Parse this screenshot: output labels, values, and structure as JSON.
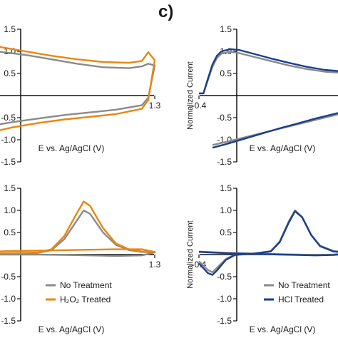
{
  "figure": {
    "panel_label": "c)"
  },
  "colors": {
    "no_treatment": "#8a8a8a",
    "h2o2": "#e8870e",
    "hcl": "#1a3f8c",
    "axis": "#111111"
  },
  "chart_data": [
    {
      "panel": "top-left",
      "type": "line",
      "xlabel": "E vs. Ag/AgCl (V)",
      "ylabel": "",
      "xlim": [
        -0.4,
        1.3
      ],
      "ylim": [
        -1.5,
        1.5
      ],
      "x_ticks_shown": [
        "1.3"
      ],
      "y_ticks": [
        "1.5",
        "1.0",
        "0.5",
        "-0.5",
        "-1.0",
        "-1.5"
      ],
      "series": [
        {
          "name": "",
          "color_key": "no_treatment",
          "points": [
            [
              -0.4,
              0.72
            ],
            [
              -0.2,
              0.92
            ],
            [
              0,
              1.0
            ],
            [
              0.1,
              0.99
            ],
            [
              0.3,
              0.92
            ],
            [
              0.5,
              0.82
            ],
            [
              0.7,
              0.72
            ],
            [
              0.9,
              0.64
            ],
            [
              1.1,
              0.62
            ],
            [
              1.2,
              0.66
            ],
            [
              1.25,
              0.72
            ],
            [
              1.3,
              0.68
            ],
            [
              1.25,
              -0.05
            ],
            [
              1.2,
              -0.22
            ],
            [
              1.0,
              -0.32
            ],
            [
              0.8,
              -0.38
            ],
            [
              0.6,
              -0.44
            ],
            [
              0.4,
              -0.52
            ],
            [
              0.2,
              -0.6
            ],
            [
              0,
              -0.7
            ],
            [
              -0.2,
              -0.82
            ],
            [
              -0.4,
              -0.95
            ]
          ]
        },
        {
          "name": "",
          "color_key": "h2o2",
          "points": [
            [
              -0.4,
              0.85
            ],
            [
              -0.2,
              1.05
            ],
            [
              0,
              1.12
            ],
            [
              0.1,
              1.1
            ],
            [
              0.3,
              1.0
            ],
            [
              0.5,
              0.9
            ],
            [
              0.7,
              0.82
            ],
            [
              0.9,
              0.76
            ],
            [
              1.1,
              0.74
            ],
            [
              1.2,
              0.78
            ],
            [
              1.25,
              0.98
            ],
            [
              1.3,
              0.8
            ],
            [
              1.25,
              -0.1
            ],
            [
              1.2,
              -0.3
            ],
            [
              1.0,
              -0.42
            ],
            [
              0.8,
              -0.48
            ],
            [
              0.6,
              -0.54
            ],
            [
              0.4,
              -0.62
            ],
            [
              0.2,
              -0.72
            ],
            [
              0,
              -0.85
            ],
            [
              -0.2,
              -0.98
            ],
            [
              -0.4,
              -1.1
            ]
          ]
        }
      ]
    },
    {
      "panel": "top-right",
      "type": "line",
      "xlabel": "E vs. Ag/AgCl (V)",
      "ylabel": "Normalized Current",
      "xlim": [
        -0.4,
        1.3
      ],
      "ylim": [
        -1.5,
        1.5
      ],
      "x_ticks_shown": [
        "-0.4"
      ],
      "y_ticks": [
        "1.5",
        "1.0",
        "0.5",
        "-0.5",
        "-1.0",
        "-1.5"
      ],
      "series": [
        {
          "name": "",
          "color_key": "no_treatment",
          "points": [
            [
              -0.4,
              0.05
            ],
            [
              -0.35,
              0.05
            ],
            [
              -0.3,
              0.35
            ],
            [
              -0.25,
              0.65
            ],
            [
              -0.2,
              0.85
            ],
            [
              -0.15,
              0.95
            ],
            [
              -0.05,
              0.99
            ],
            [
              0.05,
              0.96
            ],
            [
              0.2,
              0.88
            ],
            [
              0.4,
              0.78
            ],
            [
              0.6,
              0.68
            ],
            [
              0.8,
              0.6
            ],
            [
              1.0,
              0.54
            ],
            [
              1.3,
              0.5
            ],
            [
              1.3,
              -0.35
            ],
            [
              1.1,
              -0.45
            ],
            [
              0.9,
              -0.55
            ],
            [
              0.7,
              -0.65
            ],
            [
              0.5,
              -0.75
            ],
            [
              0.3,
              -0.85
            ],
            [
              0.1,
              -0.95
            ],
            [
              -0.1,
              -1.05
            ],
            [
              -0.25,
              -1.12
            ]
          ]
        },
        {
          "name": "",
          "color_key": "hcl",
          "points": [
            [
              -0.4,
              0.05
            ],
            [
              -0.35,
              0.05
            ],
            [
              -0.3,
              0.38
            ],
            [
              -0.25,
              0.7
            ],
            [
              -0.2,
              0.9
            ],
            [
              -0.15,
              1.0
            ],
            [
              -0.05,
              1.05
            ],
            [
              0.05,
              1.03
            ],
            [
              0.2,
              0.95
            ],
            [
              0.4,
              0.84
            ],
            [
              0.6,
              0.74
            ],
            [
              0.8,
              0.65
            ],
            [
              1.0,
              0.58
            ],
            [
              1.3,
              0.53
            ],
            [
              1.3,
              -0.32
            ],
            [
              1.1,
              -0.42
            ],
            [
              0.9,
              -0.52
            ],
            [
              0.7,
              -0.63
            ],
            [
              0.5,
              -0.74
            ],
            [
              0.3,
              -0.86
            ],
            [
              0.1,
              -0.98
            ],
            [
              -0.1,
              -1.1
            ],
            [
              -0.25,
              -1.18
            ]
          ]
        }
      ]
    },
    {
      "panel": "bottom-left",
      "type": "line",
      "xlabel": "E vs. Ag/AgCl (V)",
      "ylabel": "",
      "xlim": [
        -0.4,
        1.3
      ],
      "ylim": [
        -1.5,
        1.5
      ],
      "x_ticks_shown": [
        "1.3"
      ],
      "y_ticks": [
        "1.5",
        "1.0",
        "0.5",
        "-0.5",
        "-1.0",
        "-1.5"
      ],
      "legend": {
        "position": "bottom-right",
        "entries": [
          "No Treatment",
          "H₂O₂ Treated"
        ]
      },
      "series": [
        {
          "name": "No Treatment",
          "color_key": "no_treatment",
          "points": [
            [
              -0.4,
              -0.4
            ],
            [
              -0.3,
              -0.2
            ],
            [
              -0.2,
              -0.05
            ],
            [
              -0.1,
              0.0
            ],
            [
              0,
              0.01
            ],
            [
              0.2,
              0.02
            ],
            [
              0.4,
              0.04
            ],
            [
              0.5,
              0.1
            ],
            [
              0.6,
              0.35
            ],
            [
              0.7,
              0.78
            ],
            [
              0.75,
              1.0
            ],
            [
              0.8,
              0.92
            ],
            [
              0.9,
              0.5
            ],
            [
              1.0,
              0.22
            ],
            [
              1.1,
              0.1
            ],
            [
              1.2,
              0.06
            ],
            [
              1.3,
              0.05
            ],
            [
              1.2,
              -0.02
            ],
            [
              1.0,
              -0.03
            ],
            [
              0.8,
              -0.02
            ],
            [
              0.6,
              -0.01
            ],
            [
              0.4,
              0.0
            ],
            [
              0.2,
              0.0
            ],
            [
              0,
              0.0
            ],
            [
              -0.2,
              -0.02
            ],
            [
              -0.3,
              -0.08
            ],
            [
              -0.4,
              -0.3
            ]
          ]
        },
        {
          "name": "H₂O₂ Treated",
          "color_key": "h2o2",
          "points": [
            [
              -0.4,
              -0.55
            ],
            [
              -0.3,
              -0.3
            ],
            [
              -0.2,
              -0.08
            ],
            [
              -0.1,
              0.0
            ],
            [
              0,
              0.02
            ],
            [
              0.2,
              0.03
            ],
            [
              0.4,
              0.05
            ],
            [
              0.5,
              0.12
            ],
            [
              0.6,
              0.42
            ],
            [
              0.7,
              0.95
            ],
            [
              0.75,
              1.2
            ],
            [
              0.8,
              1.1
            ],
            [
              0.9,
              0.6
            ],
            [
              1.0,
              0.25
            ],
            [
              1.1,
              0.12
            ],
            [
              1.2,
              0.07
            ],
            [
              1.3,
              0.06
            ],
            [
              1.2,
              0.12
            ],
            [
              1.0,
              0.12
            ],
            [
              0.8,
              0.11
            ],
            [
              0.6,
              0.1
            ],
            [
              0.4,
              0.09
            ],
            [
              0.2,
              0.08
            ],
            [
              0,
              0.06
            ],
            [
              -0.2,
              0.02
            ],
            [
              -0.3,
              -0.05
            ],
            [
              -0.4,
              -0.2
            ]
          ]
        }
      ]
    },
    {
      "panel": "bottom-right",
      "type": "line",
      "xlabel": "E vs. Ag/AgCl (V)",
      "ylabel": "Normalized Current",
      "xlim": [
        -0.4,
        1.3
      ],
      "ylim": [
        -1.5,
        1.5
      ],
      "x_ticks_shown": [
        "-0.4"
      ],
      "y_ticks": [
        "1.5",
        "1.0",
        "0.5",
        "-0.5",
        "-1.0",
        "-1.5"
      ],
      "legend": {
        "position": "bottom-right",
        "entries": [
          "No Treatment",
          "HCl Treated"
        ]
      },
      "series": [
        {
          "name": "No Treatment",
          "color_key": "no_treatment",
          "points": [
            [
              -0.4,
              -0.15
            ],
            [
              -0.3,
              -0.35
            ],
            [
              -0.25,
              -0.4
            ],
            [
              -0.2,
              -0.3
            ],
            [
              -0.1,
              -0.1
            ],
            [
              0,
              0.0
            ],
            [
              0.2,
              0.02
            ],
            [
              0.4,
              0.08
            ],
            [
              0.5,
              0.3
            ],
            [
              0.6,
              0.75
            ],
            [
              0.67,
              1.0
            ],
            [
              0.75,
              0.85
            ],
            [
              0.85,
              0.45
            ],
            [
              0.95,
              0.2
            ],
            [
              1.1,
              0.08
            ],
            [
              1.3,
              0.04
            ],
            [
              1.1,
              0.0
            ],
            [
              0.9,
              -0.01
            ],
            [
              0.7,
              0.0
            ],
            [
              0.5,
              0.01
            ],
            [
              0.3,
              0.02
            ],
            [
              0.1,
              0.03
            ],
            [
              -0.1,
              0.04
            ],
            [
              -0.3,
              0.06
            ],
            [
              -0.4,
              0.07
            ]
          ]
        },
        {
          "name": "HCl Treated",
          "color_key": "hcl",
          "points": [
            [
              -0.4,
              -0.2
            ],
            [
              -0.3,
              -0.42
            ],
            [
              -0.25,
              -0.46
            ],
            [
              -0.2,
              -0.36
            ],
            [
              -0.1,
              -0.12
            ],
            [
              0,
              -0.01
            ],
            [
              0.2,
              0.02
            ],
            [
              0.4,
              0.07
            ],
            [
              0.5,
              0.28
            ],
            [
              0.6,
              0.72
            ],
            [
              0.67,
              0.98
            ],
            [
              0.75,
              0.84
            ],
            [
              0.85,
              0.44
            ],
            [
              0.95,
              0.19
            ],
            [
              1.1,
              0.07
            ],
            [
              1.3,
              0.03
            ],
            [
              1.1,
              -0.01
            ],
            [
              0.9,
              -0.02
            ],
            [
              0.7,
              -0.01
            ],
            [
              0.5,
              0.0
            ],
            [
              0.3,
              0.01
            ],
            [
              0.1,
              0.02
            ],
            [
              -0.1,
              0.03
            ],
            [
              -0.3,
              0.05
            ],
            [
              -0.4,
              0.06
            ]
          ]
        }
      ]
    }
  ]
}
